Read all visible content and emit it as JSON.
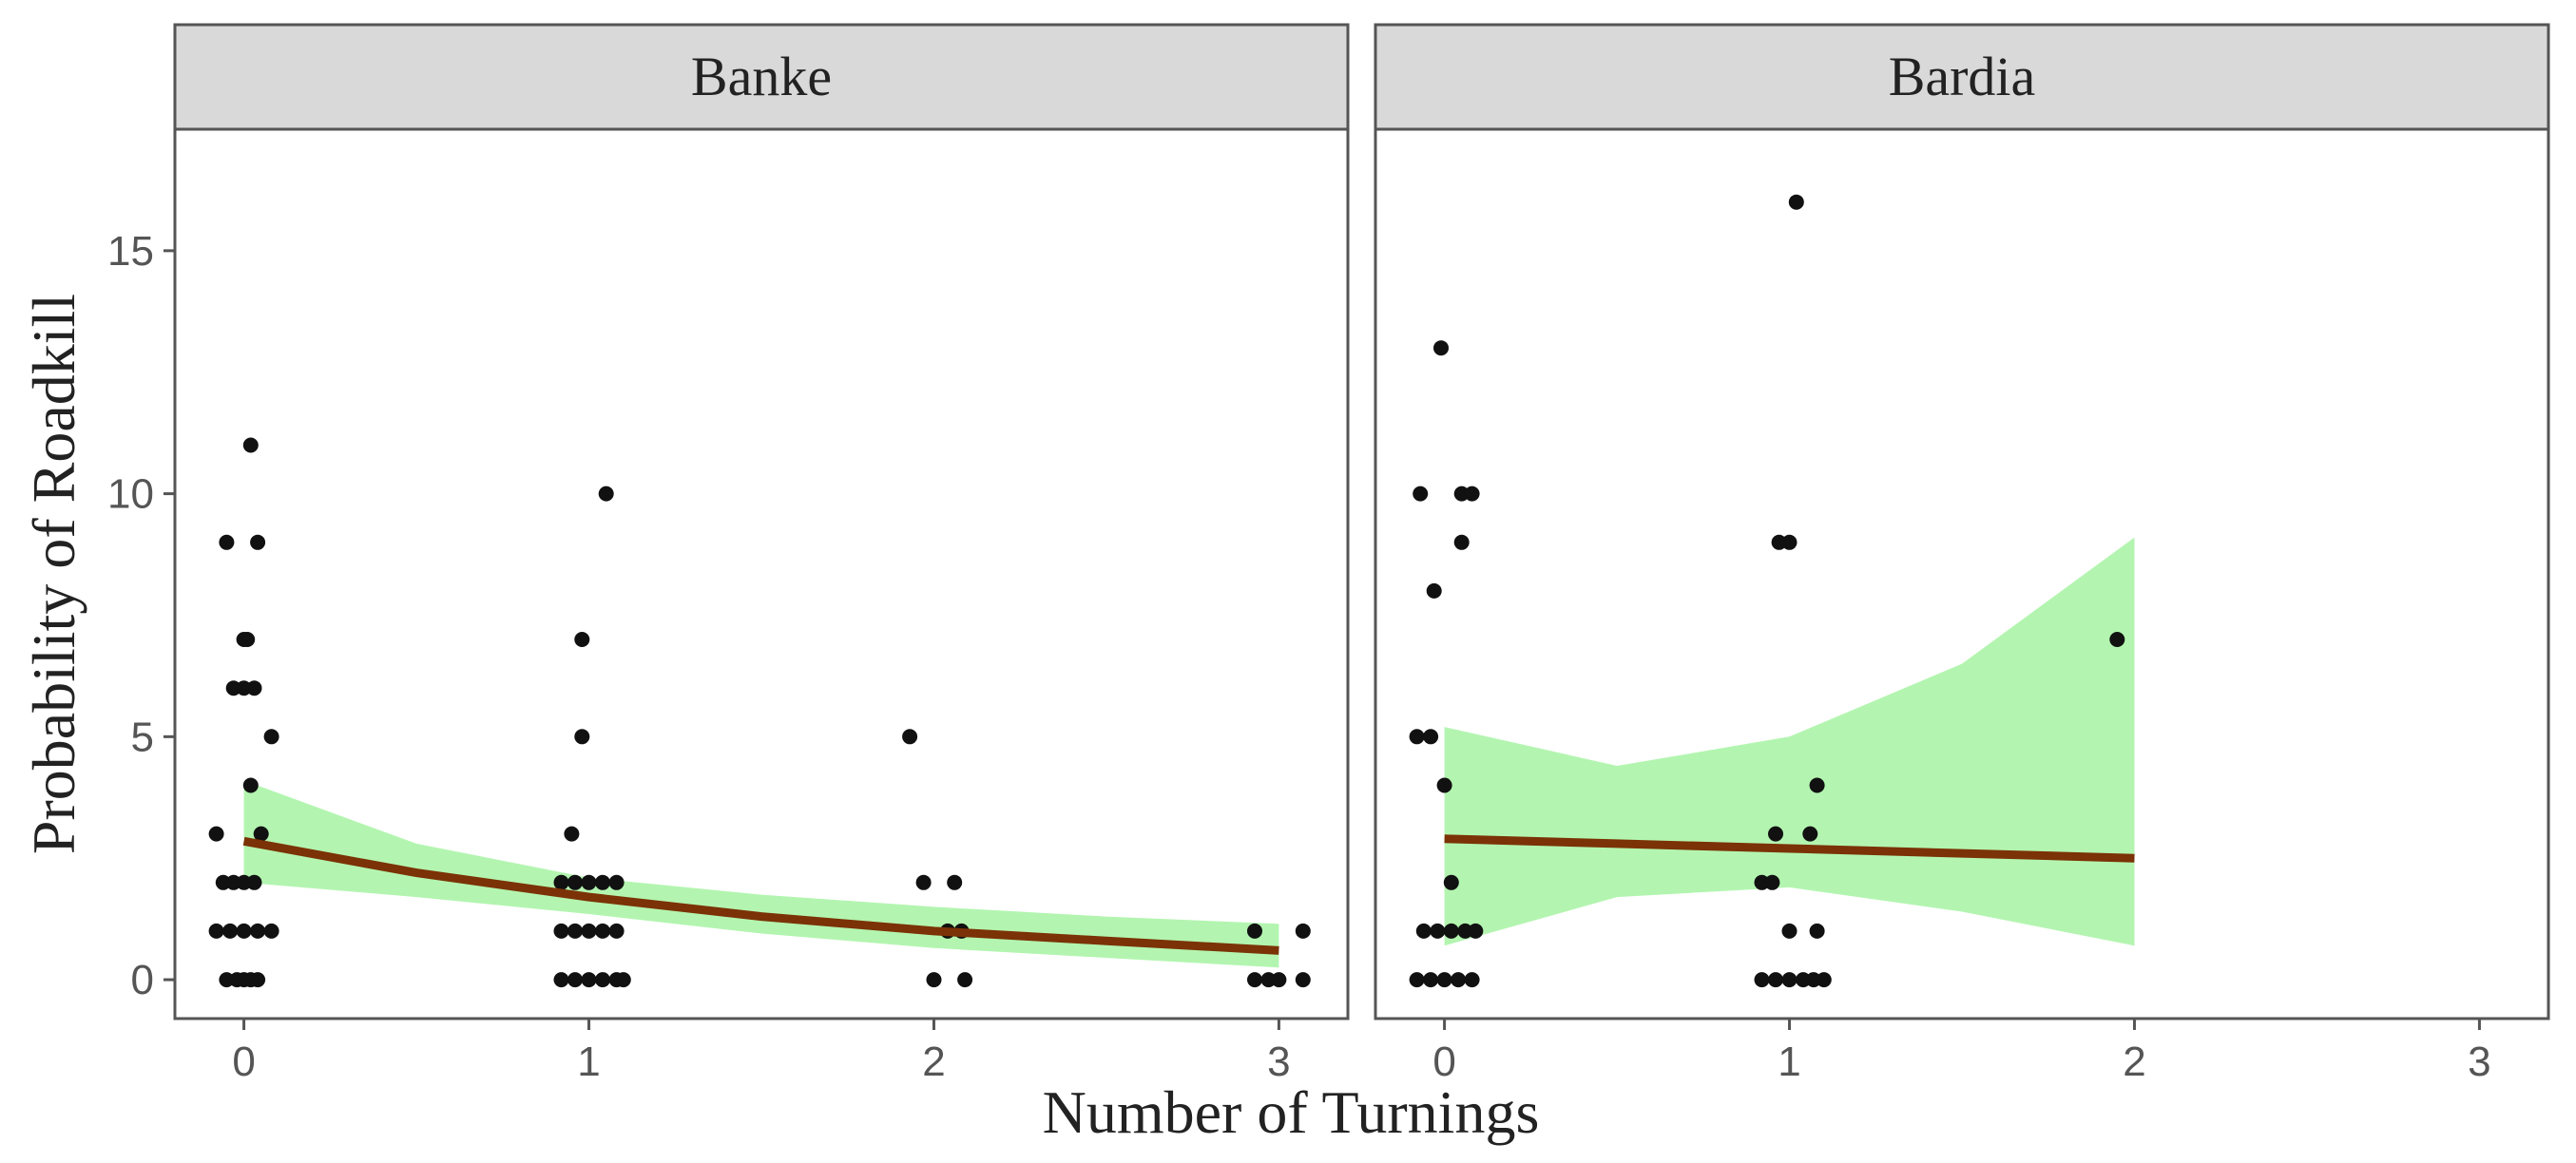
{
  "chart_data": {
    "type": "scatter",
    "xlabel": "Number of Turnings",
    "ylabel": "Probability of Roadkill",
    "xlim": [
      -0.2,
      3.2
    ],
    "ylim": [
      -0.8,
      17.5
    ],
    "x_ticks": [
      0,
      1,
      2,
      3
    ],
    "y_ticks": [
      0,
      5,
      10,
      15
    ],
    "grid": false,
    "colors": {
      "strip": "#d9d9d9",
      "ribbon": "#b3f5b0",
      "line": "#7b3206",
      "points": "#111111"
    },
    "panels": [
      {
        "label": "Banke",
        "points": [
          {
            "x": -0.08,
            "y": 3
          },
          {
            "x": -0.06,
            "y": 2
          },
          {
            "x": -0.03,
            "y": 2
          },
          {
            "x": 0.0,
            "y": 2
          },
          {
            "x": 0.03,
            "y": 2
          },
          {
            "x": -0.08,
            "y": 1
          },
          {
            "x": -0.04,
            "y": 1
          },
          {
            "x": 0.0,
            "y": 1
          },
          {
            "x": 0.04,
            "y": 1
          },
          {
            "x": 0.08,
            "y": 1
          },
          {
            "x": -0.05,
            "y": 0
          },
          {
            "x": -0.02,
            "y": 0
          },
          {
            "x": 0.0,
            "y": 0
          },
          {
            "x": 0.02,
            "y": 0
          },
          {
            "x": 0.04,
            "y": 0
          },
          {
            "x": -0.03,
            "y": 6
          },
          {
            "x": 0.0,
            "y": 6
          },
          {
            "x": 0.03,
            "y": 6
          },
          {
            "x": 0.0,
            "y": 7
          },
          {
            "x": 0.01,
            "y": 7
          },
          {
            "x": -0.05,
            "y": 9
          },
          {
            "x": 0.04,
            "y": 9
          },
          {
            "x": 0.02,
            "y": 11
          },
          {
            "x": 0.08,
            "y": 5
          },
          {
            "x": 0.02,
            "y": 4
          },
          {
            "x": 0.05,
            "y": 3
          },
          {
            "x": 0.95,
            "y": 3
          },
          {
            "x": 0.92,
            "y": 2
          },
          {
            "x": 0.96,
            "y": 2
          },
          {
            "x": 1.0,
            "y": 2
          },
          {
            "x": 1.04,
            "y": 2
          },
          {
            "x": 1.08,
            "y": 2
          },
          {
            "x": 0.92,
            "y": 1
          },
          {
            "x": 0.96,
            "y": 1
          },
          {
            "x": 1.0,
            "y": 1
          },
          {
            "x": 1.04,
            "y": 1
          },
          {
            "x": 1.08,
            "y": 1
          },
          {
            "x": 0.92,
            "y": 0
          },
          {
            "x": 0.96,
            "y": 0
          },
          {
            "x": 1.0,
            "y": 0
          },
          {
            "x": 1.04,
            "y": 0
          },
          {
            "x": 1.08,
            "y": 0
          },
          {
            "x": 1.1,
            "y": 0
          },
          {
            "x": 0.98,
            "y": 5
          },
          {
            "x": 0.98,
            "y": 7
          },
          {
            "x": 1.05,
            "y": 10
          },
          {
            "x": 1.93,
            "y": 5
          },
          {
            "x": 1.97,
            "y": 2
          },
          {
            "x": 2.06,
            "y": 2
          },
          {
            "x": 2.04,
            "y": 1
          },
          {
            "x": 2.08,
            "y": 1
          },
          {
            "x": 2.0,
            "y": 0
          },
          {
            "x": 2.09,
            "y": 0
          },
          {
            "x": 2.93,
            "y": 1
          },
          {
            "x": 3.07,
            "y": 1
          },
          {
            "x": 2.93,
            "y": 0
          },
          {
            "x": 2.97,
            "y": 0
          },
          {
            "x": 3.0,
            "y": 0
          },
          {
            "x": 3.07,
            "y": 0
          }
        ],
        "fit": {
          "x": [
            0,
            0.5,
            1,
            1.5,
            2,
            2.5,
            3
          ],
          "y": [
            2.85,
            2.2,
            1.7,
            1.3,
            1.0,
            0.8,
            0.6
          ],
          "lower": [
            2.0,
            1.7,
            1.35,
            0.95,
            0.65,
            0.45,
            0.25
          ],
          "upper": [
            4.1,
            2.8,
            2.1,
            1.75,
            1.5,
            1.3,
            1.15
          ]
        }
      },
      {
        "label": "Bardia",
        "points": [
          {
            "x": -0.08,
            "y": 5
          },
          {
            "x": -0.04,
            "y": 5
          },
          {
            "x": -0.07,
            "y": 10
          },
          {
            "x": -0.03,
            "y": 8
          },
          {
            "x": -0.01,
            "y": 13
          },
          {
            "x": 0.0,
            "y": 4
          },
          {
            "x": 0.02,
            "y": 2
          },
          {
            "x": 0.05,
            "y": 10
          },
          {
            "x": 0.08,
            "y": 10
          },
          {
            "x": 0.05,
            "y": 9
          },
          {
            "x": -0.06,
            "y": 1
          },
          {
            "x": -0.02,
            "y": 1
          },
          {
            "x": 0.02,
            "y": 1
          },
          {
            "x": 0.06,
            "y": 1
          },
          {
            "x": 0.09,
            "y": 1
          },
          {
            "x": -0.08,
            "y": 0
          },
          {
            "x": -0.04,
            "y": 0
          },
          {
            "x": 0.0,
            "y": 0
          },
          {
            "x": 0.04,
            "y": 0
          },
          {
            "x": 0.08,
            "y": 0
          },
          {
            "x": 0.92,
            "y": 2
          },
          {
            "x": 0.95,
            "y": 2
          },
          {
            "x": 0.96,
            "y": 3
          },
          {
            "x": 0.97,
            "y": 9
          },
          {
            "x": 1.0,
            "y": 9
          },
          {
            "x": 1.02,
            "y": 16
          },
          {
            "x": 1.06,
            "y": 3
          },
          {
            "x": 1.08,
            "y": 4
          },
          {
            "x": 1.0,
            "y": 1
          },
          {
            "x": 1.08,
            "y": 1
          },
          {
            "x": 0.92,
            "y": 0
          },
          {
            "x": 0.96,
            "y": 0
          },
          {
            "x": 1.0,
            "y": 0
          },
          {
            "x": 1.04,
            "y": 0
          },
          {
            "x": 1.07,
            "y": 0
          },
          {
            "x": 1.1,
            "y": 0
          },
          {
            "x": 1.95,
            "y": 7
          }
        ],
        "fit": {
          "x": [
            0,
            0.5,
            1,
            1.5,
            2
          ],
          "y": [
            2.9,
            2.8,
            2.7,
            2.6,
            2.5
          ],
          "lower": [
            0.7,
            1.7,
            1.9,
            1.4,
            0.7
          ],
          "upper": [
            5.2,
            4.4,
            5.0,
            6.5,
            9.1
          ]
        }
      }
    ]
  }
}
